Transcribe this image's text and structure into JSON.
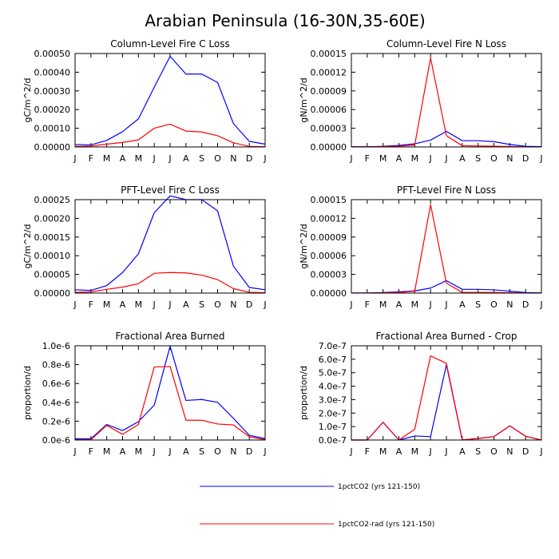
{
  "title": "Arabian Peninsula (16-30N,35-60E)",
  "colors": {
    "series1": "#0000ff",
    "series2": "#ff0000"
  },
  "legend": [
    {
      "label": "1pctCO2 (yrs 121-150)",
      "color": "#0000ff"
    },
    {
      "label": "1pctCO2-rad (yrs 121-150)",
      "color": "#ff0000"
    }
  ],
  "chart_data": [
    {
      "type": "line",
      "title": "Column-Level Fire C Loss",
      "ylabel": "gC/m^2/d",
      "categories": [
        "J",
        "F",
        "M",
        "A",
        "M",
        "J",
        "J",
        "A",
        "S",
        "O",
        "N",
        "D",
        "J"
      ],
      "ylim": [
        0,
        0.0005
      ],
      "yticks": [
        "0.00000",
        "0.00010",
        "0.00020",
        "0.00030",
        "0.00040",
        "0.00050"
      ],
      "series": [
        {
          "name": "1pctCO2 (yrs 121-150)",
          "values": [
            1.3e-05,
            1.1e-05,
            3.5e-05,
            8.2e-05,
            0.00015,
            0.00032,
            0.000485,
            0.00039,
            0.00039,
            0.000345,
            0.000125,
            3e-05,
            1.5e-05
          ]
        },
        {
          "name": "1pctCO2-rad (yrs 121-150)",
          "values": [
            3e-06,
            5e-06,
            1.5e-05,
            2.4e-05,
            3.8e-05,
            0.0001,
            0.000122,
            8.5e-05,
            8e-05,
            6e-05,
            2.2e-05,
            3e-06,
            1e-06
          ]
        }
      ]
    },
    {
      "type": "line",
      "title": "Column-Level Fire N Loss",
      "ylabel": "gN/m^2/d",
      "categories": [
        "J",
        "F",
        "M",
        "A",
        "M",
        "J",
        "J",
        "A",
        "S",
        "O",
        "N",
        "D",
        "J"
      ],
      "ylim": [
        0,
        0.00015
      ],
      "yticks": [
        "0.00000",
        "0.00003",
        "0.00006",
        "0.00009",
        "0.00012",
        "0.00015"
      ],
      "series": [
        {
          "name": "1pctCO2 (yrs 121-150)",
          "values": [
            3e-07,
            3e-07,
            1e-06,
            2.5e-06,
            5e-06,
            1.1e-05,
            2.5e-05,
            1e-05,
            1e-05,
            8.5e-06,
            4e-06,
            1e-06,
            5e-07
          ]
        },
        {
          "name": "1pctCO2-rad (yrs 121-150)",
          "values": [
            1e-07,
            2e-07,
            5e-07,
            1.2e-06,
            3e-06,
            0.000143,
            1.8e-05,
            2e-06,
            1.5e-06,
            1.2e-06,
            6e-07,
            1e-07,
            1e-07
          ]
        }
      ]
    },
    {
      "type": "line",
      "title": "PFT-Level Fire C Loss",
      "ylabel": "gC/m^2/d",
      "categories": [
        "J",
        "F",
        "M",
        "A",
        "M",
        "J",
        "J",
        "A",
        "S",
        "O",
        "N",
        "D",
        "J"
      ],
      "ylim": [
        0,
        0.00025
      ],
      "yticks": [
        "0.00000",
        "0.00005",
        "0.00010",
        "0.00015",
        "0.00020",
        "0.00025"
      ],
      "series": [
        {
          "name": "1pctCO2 (yrs 121-150)",
          "values": [
            9e-06,
            7e-06,
            2e-05,
            5.5e-05,
            0.000105,
            0.000215,
            0.00026,
            0.00025,
            0.00025,
            0.00022,
            7.2e-05,
            1.5e-05,
            9e-06
          ]
        },
        {
          "name": "1pctCO2-rad (yrs 121-150)",
          "values": [
            2e-06,
            3e-06,
            1e-05,
            1.6e-05,
            2.5e-05,
            5.3e-05,
            5.5e-05,
            5.4e-05,
            4.8e-05,
            3.6e-05,
            1.2e-05,
            2e-06,
            1e-06
          ]
        }
      ]
    },
    {
      "type": "line",
      "title": "PFT-Level Fire N Loss",
      "ylabel": "gN/m^2/d",
      "categories": [
        "J",
        "F",
        "M",
        "A",
        "M",
        "J",
        "J",
        "A",
        "S",
        "O",
        "N",
        "D",
        "J"
      ],
      "ylim": [
        0,
        0.00015
      ],
      "yticks": [
        "0.00000",
        "0.00003",
        "0.00006",
        "0.00009",
        "0.00012",
        "0.00015"
      ],
      "series": [
        {
          "name": "1pctCO2 (yrs 121-150)",
          "values": [
            2e-07,
            2e-07,
            8e-07,
            2e-06,
            3.5e-06,
            8e-06,
            2e-05,
            6e-06,
            6e-06,
            5.2e-06,
            3e-06,
            8e-07,
            3e-07
          ]
        },
        {
          "name": "1pctCO2-rad (yrs 121-150)",
          "values": [
            1e-07,
            1e-07,
            4e-07,
            1e-06,
            3e-06,
            0.000142,
            1.6e-05,
            1e-06,
            1e-06,
            1e-06,
            5e-07,
            1e-07,
            1e-07
          ]
        }
      ]
    },
    {
      "type": "line",
      "title": "Fractional Area Burned",
      "ylabel": "proportion/d",
      "categories": [
        "J",
        "F",
        "M",
        "A",
        "M",
        "J",
        "J",
        "A",
        "S",
        "O",
        "N",
        "D",
        "J"
      ],
      "ylim": [
        0,
        1e-06
      ],
      "yticks": [
        "0.0e-6",
        "0.2e-6",
        "0.4e-6",
        "0.6e-6",
        "0.8e-6",
        "1.0e-6"
      ],
      "series": [
        {
          "name": "1pctCO2 (yrs 121-150)",
          "values": [
            1.3e-08,
            1.3e-08,
            1.65e-07,
            1e-07,
            1.95e-07,
            3.7e-07,
            9.95e-07,
            4.2e-07,
            4.3e-07,
            4e-07,
            2.3e-07,
            5e-08,
            1.5e-08
          ]
        },
        {
          "name": "1pctCO2-rad (yrs 121-150)",
          "values": [
            3e-09,
            3e-09,
            1.55e-07,
            6e-08,
            1.65e-07,
            7.75e-07,
            7.8e-07,
            2.1e-07,
            2.1e-07,
            1.7e-07,
            1.6e-07,
            3.5e-08,
            3e-09
          ]
        }
      ]
    },
    {
      "type": "line",
      "title": "Fractional Area Burned - Crop",
      "ylabel": "proportion/d",
      "categories": [
        "J",
        "F",
        "M",
        "A",
        "M",
        "J",
        "J",
        "A",
        "S",
        "O",
        "N",
        "D",
        "J"
      ],
      "ylim": [
        0,
        7e-07
      ],
      "yticks": [
        "0.0e-7",
        "1.0e-7",
        "2.0e-7",
        "3.0e-7",
        "4.0e-7",
        "5.0e-7",
        "6.0e-7",
        "7.0e-7"
      ],
      "series": [
        {
          "name": "1pctCO2 (yrs 121-150)",
          "values": [
            0,
            0,
            1.32e-07,
            0,
            3e-08,
            2.5e-08,
            5.6e-07,
            0,
            1.2e-08,
            2.5e-08,
            1.05e-07,
            2.8e-08,
            0
          ]
        },
        {
          "name": "1pctCO2-rad (yrs 121-150)",
          "values": [
            0,
            0,
            1.32e-07,
            0,
            8e-08,
            6.25e-07,
            5.7e-07,
            0,
            1.2e-08,
            2.5e-08,
            1.05e-07,
            2.8e-08,
            0
          ]
        }
      ]
    }
  ]
}
